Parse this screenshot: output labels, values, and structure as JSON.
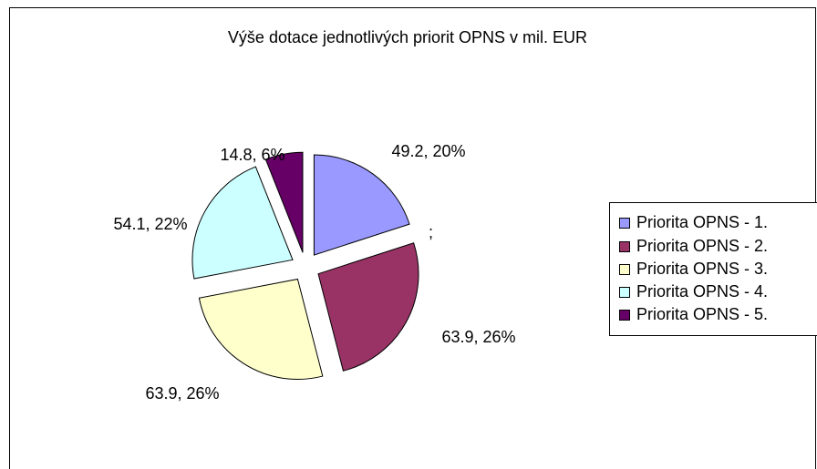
{
  "chart_data": {
    "type": "pie",
    "title": "Výše dotace jednotlivých priorit OPNS v mil. EUR",
    "categories": [
      "Priorita OPNS - 1.",
      "Priorita OPNS - 2.",
      "Priorita OPNS - 3.",
      "Priorita OPNS - 4.",
      "Priorita OPNS - 5."
    ],
    "values": [
      49.2,
      63.9,
      63.9,
      54.1,
      14.8
    ],
    "value_labels": [
      "49.2, 20%",
      "63.9, 26%",
      "63.9, 26%",
      "54.1, 22%",
      "14.8, 6%"
    ],
    "colors": [
      "#9999ff",
      "#993366",
      "#ffffcc",
      "#ccffff",
      "#660066"
    ],
    "annotation": ";",
    "legend": "right"
  }
}
